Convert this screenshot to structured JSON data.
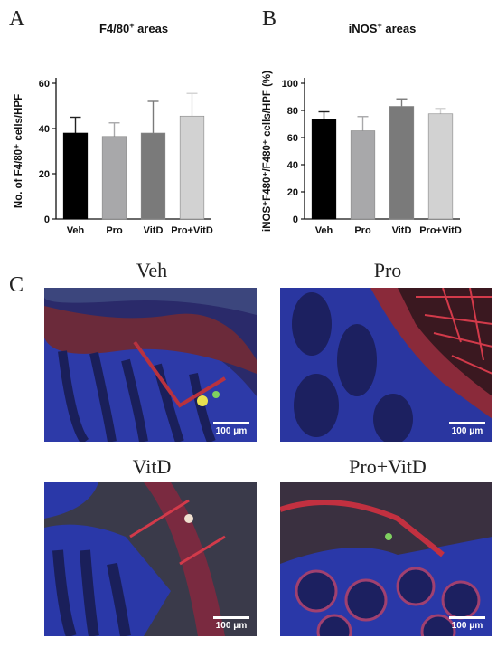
{
  "panels": {
    "a": "A",
    "b": "B",
    "c": "C"
  },
  "chart_data": [
    {
      "type": "bar",
      "title": "F4/80",
      "title_sup": "+",
      "title_tail": " areas",
      "ylabel": "No. of F4/80⁺ cells/HPF",
      "categories": [
        "Veh",
        "Pro",
        "VitD",
        "Pro+VitD"
      ],
      "values": [
        38,
        36.5,
        38,
        45.5
      ],
      "errors": [
        7,
        6,
        14,
        10
      ],
      "ylim": [
        0,
        60
      ],
      "yticks": [
        0,
        20,
        40,
        60
      ],
      "colors": [
        "#000000",
        "#a8a8aa",
        "#7a7a7a",
        "#d2d2d2"
      ]
    },
    {
      "type": "bar",
      "title": "iNOS",
      "title_sup": "+",
      "title_tail": " areas",
      "ylabel": "iNOS⁺F480⁺/F480⁺ cells/HPF (%)",
      "categories": [
        "Veh",
        "Pro",
        "VitD",
        "Pro+VitD"
      ],
      "values": [
        73.5,
        65,
        83,
        77.5
      ],
      "errors": [
        5.5,
        10.5,
        5.5,
        4
      ],
      "ylim": [
        0,
        100
      ],
      "yticks": [
        0,
        20,
        40,
        60,
        80,
        100
      ],
      "colors": [
        "#000000",
        "#a8a8aa",
        "#7a7a7a",
        "#d2d2d2"
      ]
    }
  ],
  "images": [
    {
      "title": "Veh",
      "scale": "100 μm"
    },
    {
      "title": "Pro",
      "scale": "100 μm"
    },
    {
      "title": "VitD",
      "scale": "100 μm"
    },
    {
      "title": "Pro+VitD",
      "scale": "100 μm"
    }
  ]
}
